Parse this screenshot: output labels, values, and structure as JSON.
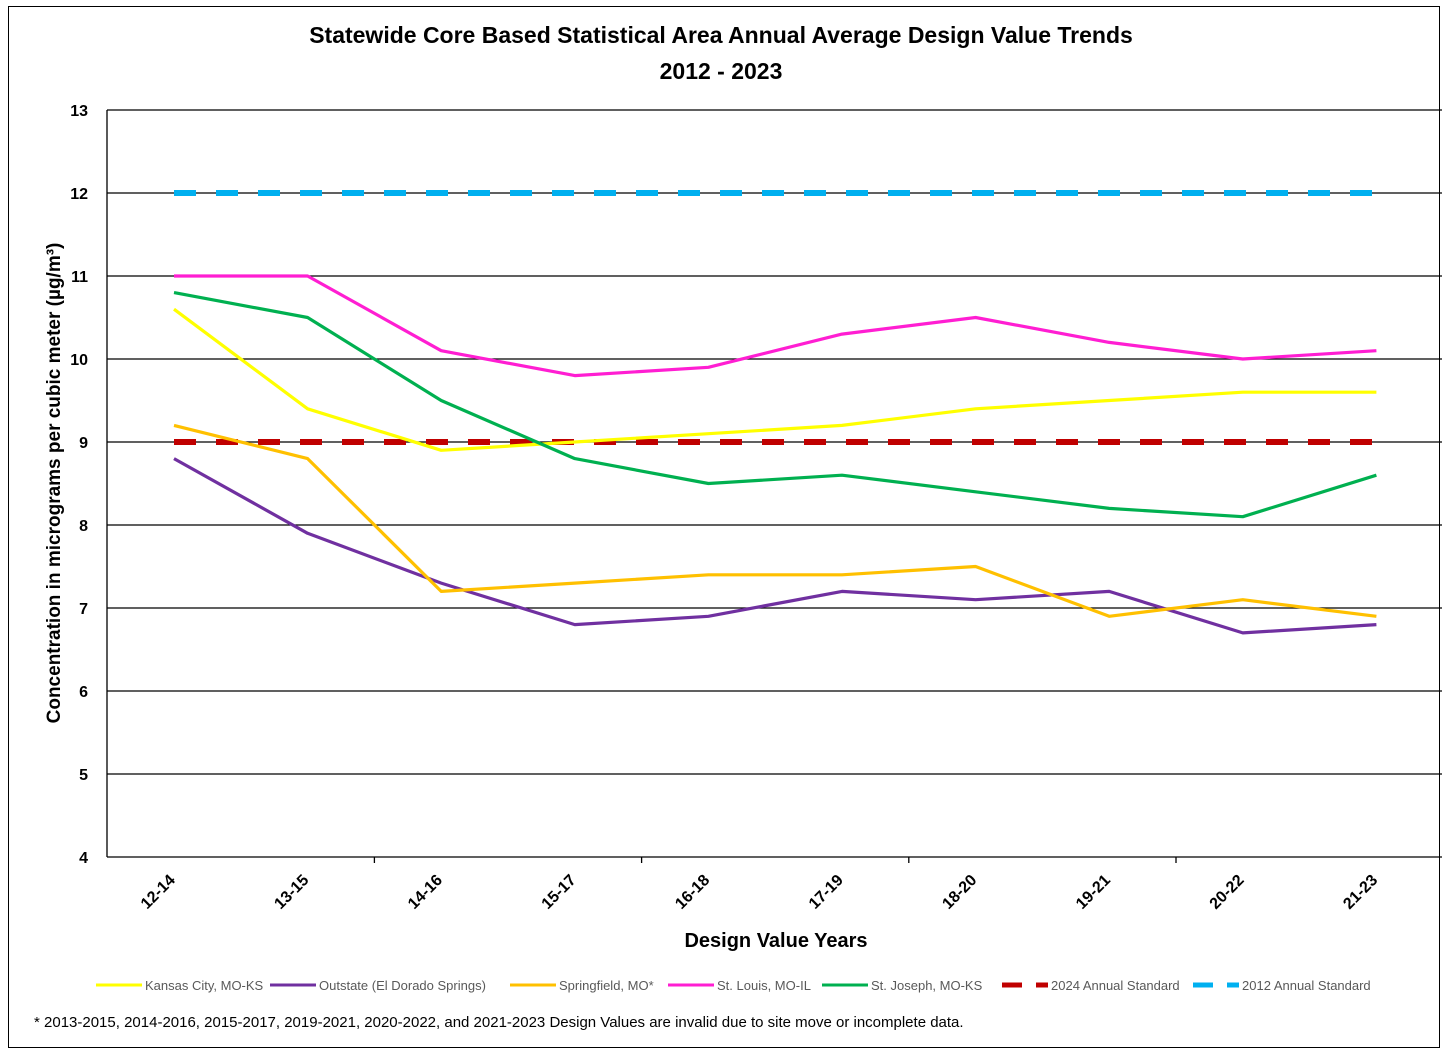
{
  "chart_data": {
    "type": "line",
    "title": "Statewide Core Based Statistical Area Annual Average Design Value Trends",
    "subtitle": "2012 - 2023",
    "xlabel": "Design Value Years",
    "ylabel": "Concentration in micrograms per cubic meter (µg/m³)",
    "ylim": [
      4,
      13
    ],
    "yticks": [
      "4",
      "5",
      "6",
      "7",
      "8",
      "9",
      "10",
      "11",
      "12",
      "13"
    ],
    "grid": true,
    "legend_position": "bottom",
    "categories": [
      "12-14",
      "13-15",
      "14-16",
      "15-17",
      "16-18",
      "17-19",
      "18-20",
      "19-21",
      "20-22",
      "21-23"
    ],
    "series": [
      {
        "name": "Kansas City, MO-KS",
        "color": "#ffff00",
        "style": "solid",
        "values": [
          10.6,
          9.4,
          8.9,
          9.0,
          9.1,
          9.2,
          9.4,
          9.5,
          9.6,
          9.6
        ]
      },
      {
        "name": "Outstate (El Dorado Springs)",
        "color": "#7030a0",
        "style": "solid",
        "values": [
          8.8,
          7.9,
          7.3,
          6.8,
          6.9,
          7.2,
          7.1,
          7.2,
          6.7,
          6.8
        ]
      },
      {
        "name": "Springfield, MO*",
        "color": "#ffc000",
        "style": "solid",
        "values": [
          9.2,
          8.8,
          7.2,
          7.3,
          7.4,
          7.4,
          7.5,
          6.9,
          7.1,
          6.9
        ]
      },
      {
        "name": "St. Louis, MO-IL",
        "color": "#ff1ed2",
        "style": "solid",
        "values": [
          11.0,
          11.0,
          10.1,
          9.8,
          9.9,
          10.3,
          10.5,
          10.2,
          10.0,
          10.1
        ]
      },
      {
        "name": "St. Joseph, MO-KS",
        "color": "#00b050",
        "style": "solid",
        "values": [
          10.8,
          10.5,
          9.5,
          8.8,
          8.5,
          8.6,
          8.4,
          8.2,
          8.1,
          8.6
        ]
      },
      {
        "name": "2024 Annual Standard",
        "color": "#c00000",
        "style": "dashed",
        "values": [
          9,
          9,
          9,
          9,
          9,
          9,
          9,
          9,
          9,
          9
        ]
      },
      {
        "name": "2012 Annual Standard",
        "color": "#00b0f0",
        "style": "dashed",
        "values": [
          12,
          12,
          12,
          12,
          12,
          12,
          12,
          12,
          12,
          12
        ]
      }
    ],
    "footnote": "* 2013-2015, 2014-2016, 2015-2017, 2019-2021, 2020-2022, and 2021-2023 Design Values are invalid due to site move or incomplete data."
  }
}
